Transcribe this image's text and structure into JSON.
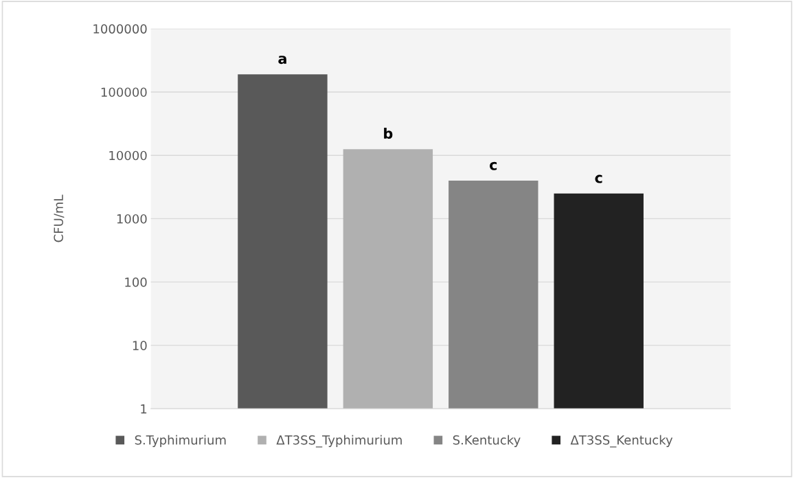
{
  "chart_data": {
    "type": "bar",
    "ylabel": "CFU/mL",
    "categories": [
      null
    ],
    "series": [
      {
        "name": "S.Typhimurium",
        "color": "#595959",
        "values": [
          190000
        ]
      },
      {
        "name": "ΔT3SS_Typhimurium",
        "color": "#b0b0b0",
        "values": [
          12500
        ]
      },
      {
        "name": "S.Kentucky",
        "color": "#858585",
        "values": [
          4000
        ]
      },
      {
        "name": "ΔT3SS_Kentucky",
        "color": "#222222",
        "values": [
          2500
        ]
      }
    ],
    "annotations": [
      {
        "text": "a",
        "y": 190000
      },
      {
        "text": "b",
        "y": 12500
      },
      {
        "text": "c",
        "y": 4000
      },
      {
        "text": "c",
        "y": 2500
      }
    ],
    "log": "y",
    "ylim": [
      1,
      1000000
    ],
    "yticks": [
      1,
      10,
      100,
      1000,
      10000,
      100000,
      1000000
    ],
    "grid": "y",
    "legend": "bottom"
  }
}
